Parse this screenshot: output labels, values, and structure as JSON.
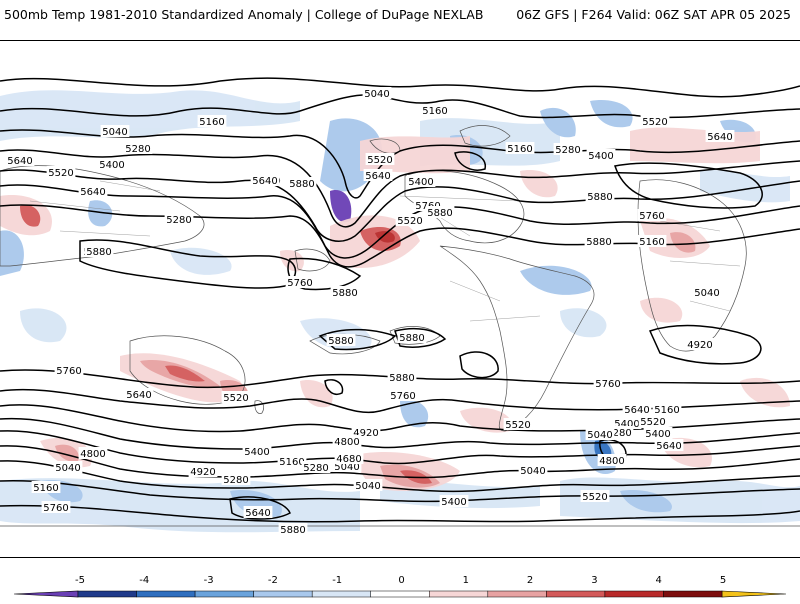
{
  "header": {
    "left_title": "500mb Temp 1981-2010 Standardized Anomaly | College of DuPage NEXLAB",
    "right_title": "06Z GFS | F264 Valid: 06Z SAT APR 05 2025"
  },
  "colorbar": {
    "tick_labels": [
      "-5",
      "-4",
      "-3",
      "-2",
      "-1",
      "0",
      "1",
      "2",
      "3",
      "4",
      "5"
    ],
    "colors": [
      "#6a3fb5",
      "#1f3a8a",
      "#2f6fbf",
      "#6aa3dc",
      "#a9c8ec",
      "#d8e6f5",
      "#ffffff",
      "#f6d6d6",
      "#e7a2a2",
      "#d35a5a",
      "#b82a2a",
      "#7d0e0e",
      "#f3c21a"
    ]
  },
  "contour_labels": [
    {
      "text": "5040",
      "lat": 73.8
    },
    {
      "text": "5160",
      "lat": 70.5
    },
    {
      "text": "5280",
      "lat": 66.8
    },
    {
      "text": "5400",
      "lat": 63.0
    },
    {
      "text": "5520",
      "lat": 58.6
    },
    {
      "text": "5640",
      "lat": 54.5
    },
    {
      "text": "5760",
      "lat": 48.8
    },
    {
      "text": "5880",
      "lat": 42.0
    },
    {
      "text": "5880",
      "lat": 32.0
    },
    {
      "text": "5880",
      "lat": 13.0
    },
    {
      "text": "5760",
      "lat": -25.0
    },
    {
      "text": "5640",
      "lat": -32.0
    },
    {
      "text": "5520",
      "lat": -38.0
    },
    {
      "text": "5400",
      "lat": -43.0
    },
    {
      "text": "5280",
      "lat": -48.0
    },
    {
      "text": "5160",
      "lat": -52.0
    },
    {
      "text": "5040",
      "lat": -56.0
    },
    {
      "text": "4920",
      "lat": -62.0
    },
    {
      "text": "4800",
      "lat": -66.0
    },
    {
      "text": "4680",
      "lat": -70.0
    }
  ],
  "labels_visible": [
    "5040",
    "5160",
    "5040",
    "5160",
    "5280",
    "5400",
    "5520",
    "5640",
    "5280",
    "5400",
    "5520",
    "5640",
    "5400",
    "5520",
    "5760",
    "5640",
    "5880",
    "5760",
    "5880",
    "5880",
    "5880",
    "5880",
    "5880",
    "5640",
    "5760",
    "5880",
    "5760",
    "5640",
    "5400",
    "5520",
    "5760",
    "5520",
    "5640",
    "5400",
    "5160",
    "5280",
    "5040",
    "4920",
    "4800",
    "4680",
    "4800",
    "5040",
    "4920",
    "5160",
    "5280",
    "5040",
    "5400",
    "5520",
    "5640",
    "5760",
    "5880",
    "5640",
    "5400",
    "5280",
    "5520",
    "5160",
    "5040",
    "4800",
    "5040",
    "5160",
    "5280",
    "5400",
    "5520",
    "5640",
    "5760",
    "5880",
    "5160",
    "5040",
    "4920",
    "5640",
    "5880",
    "5880"
  ]
}
